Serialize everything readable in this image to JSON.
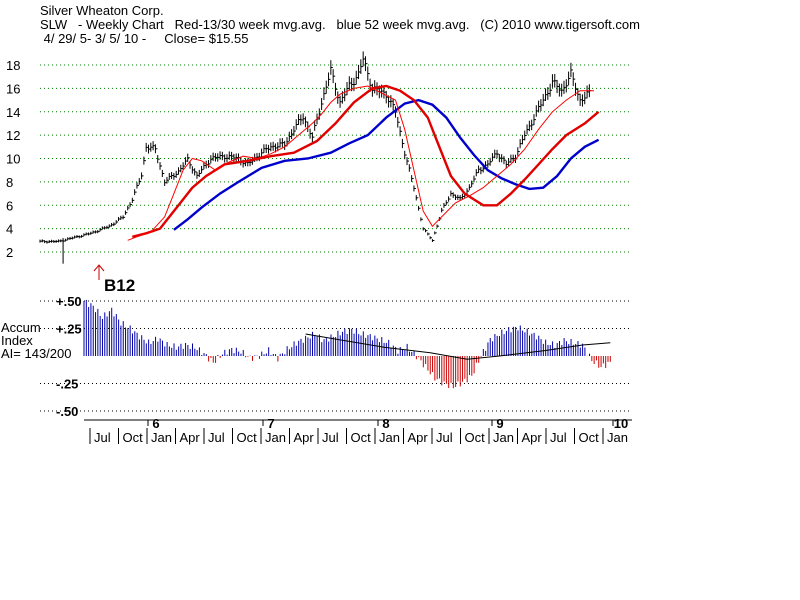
{
  "header": {
    "company": "Silver Wheaton Corp.",
    "line2": "SLW   - Weekly Chart   Red-13/30 week mvg.avg.   blue 52 week mvg.avg.   (C) 2010 www.tigersoft.com",
    "line3": " 4/ 29/ 5- 3/ 5/ 10 -     Close= $15.55"
  },
  "signal": {
    "label": "B12"
  },
  "accum_panel": {
    "title_line1": "Accum",
    "title_line2": "Index",
    "ai_text": "AI= 143/200",
    "y_ticks": [
      "+.50",
      "+.25",
      "-.25",
      "-.50"
    ]
  },
  "colors": {
    "price_bars": "#000000",
    "ma13": "#ff0000",
    "ma30": "#e00000",
    "ma52": "#0000cc",
    "accum_pos": "#0000aa",
    "accum_neg": "#cc0000",
    "grid": "#008000"
  },
  "chart_data": {
    "type": "line",
    "title": "SLW - Weekly Chart",
    "x_month_labels": [
      "Jul",
      "Oct",
      "Jan",
      "Apr",
      "Jul",
      "Oct",
      "Jan",
      "Apr",
      "Jul",
      "Oct",
      "Jan",
      "Apr",
      "Jul",
      "Oct",
      "Jan",
      "Apr",
      "Jul",
      "Oct",
      "Jan"
    ],
    "x_year_labels": [
      "6",
      "7",
      "8",
      "9",
      "10"
    ],
    "y_ticks": [
      2,
      4,
      6,
      8,
      10,
      12,
      14,
      16,
      18
    ],
    "ylim": [
      2,
      18
    ],
    "x_range_weeks": [
      0,
      253
    ],
    "price_points": [
      [
        0,
        2.9
      ],
      [
        8,
        2.9
      ],
      [
        14,
        3.2
      ],
      [
        22,
        3.6
      ],
      [
        30,
        4.2
      ],
      [
        36,
        5.0
      ],
      [
        40,
        6.5
      ],
      [
        44,
        8.6
      ],
      [
        46,
        11.0
      ],
      [
        50,
        10.8
      ],
      [
        54,
        8.0
      ],
      [
        60,
        8.9
      ],
      [
        64,
        9.9
      ],
      [
        68,
        8.5
      ],
      [
        74,
        10.0
      ],
      [
        80,
        10.2
      ],
      [
        86,
        10.0
      ],
      [
        90,
        9.5
      ],
      [
        96,
        10.5
      ],
      [
        100,
        11.0
      ],
      [
        106,
        11.2
      ],
      [
        110,
        12.5
      ],
      [
        114,
        13.6
      ],
      [
        118,
        11.8
      ],
      [
        122,
        14.8
      ],
      [
        126,
        17.5
      ],
      [
        130,
        14.8
      ],
      [
        134,
        16.2
      ],
      [
        138,
        17.2
      ],
      [
        140,
        18.5
      ],
      [
        144,
        16.0
      ],
      [
        150,
        15.5
      ],
      [
        154,
        14.0
      ],
      [
        158,
        10.5
      ],
      [
        162,
        7.5
      ],
      [
        166,
        4.0
      ],
      [
        170,
        3.0
      ],
      [
        174,
        5.5
      ],
      [
        178,
        7.0
      ],
      [
        182,
        6.5
      ],
      [
        186,
        7.5
      ],
      [
        190,
        9.0
      ],
      [
        194,
        9.5
      ],
      [
        198,
        10.5
      ],
      [
        202,
        9.5
      ],
      [
        206,
        10.2
      ],
      [
        210,
        12.0
      ],
      [
        214,
        13.5
      ],
      [
        218,
        15.0
      ],
      [
        222,
        16.5
      ],
      [
        226,
        15.8
      ],
      [
        230,
        17.2
      ],
      [
        234,
        15.0
      ],
      [
        238,
        15.55
      ]
    ],
    "series": [
      {
        "name": "Red-13/30 week mvg.avg.",
        "points": [
          [
            40,
            3.3
          ],
          [
            46,
            3.6
          ],
          [
            52,
            4.0
          ],
          [
            56,
            5.0
          ],
          [
            60,
            6.0
          ],
          [
            66,
            7.5
          ],
          [
            72,
            8.5
          ],
          [
            80,
            9.5
          ],
          [
            90,
            9.8
          ],
          [
            100,
            10.2
          ],
          [
            110,
            10.5
          ],
          [
            120,
            11.5
          ],
          [
            128,
            13.0
          ],
          [
            136,
            14.8
          ],
          [
            144,
            16.0
          ],
          [
            150,
            16.2
          ],
          [
            156,
            15.8
          ],
          [
            162,
            15.0
          ],
          [
            168,
            13.5
          ],
          [
            172,
            11.5
          ],
          [
            178,
            8.5
          ],
          [
            184,
            7.0
          ],
          [
            192,
            6.0
          ],
          [
            198,
            6.0
          ],
          [
            204,
            7.0
          ],
          [
            210,
            8.2
          ],
          [
            216,
            9.5
          ],
          [
            222,
            10.8
          ],
          [
            228,
            12.0
          ],
          [
            236,
            13.0
          ],
          [
            242,
            14.0
          ]
        ]
      },
      {
        "name": "13 week mvg.avg.",
        "points": [
          [
            38,
            3.0
          ],
          [
            42,
            3.3
          ],
          [
            48,
            3.7
          ],
          [
            54,
            5.0
          ],
          [
            58,
            7.0
          ],
          [
            62,
            9.0
          ],
          [
            66,
            10.0
          ],
          [
            70,
            9.8
          ],
          [
            76,
            9.0
          ],
          [
            82,
            9.7
          ],
          [
            88,
            10.2
          ],
          [
            94,
            10.0
          ],
          [
            100,
            10.4
          ],
          [
            106,
            11.0
          ],
          [
            112,
            12.0
          ],
          [
            118,
            13.0
          ],
          [
            122,
            13.8
          ],
          [
            126,
            14.8
          ],
          [
            130,
            15.5
          ],
          [
            136,
            16.0
          ],
          [
            142,
            16.2
          ],
          [
            148,
            15.6
          ],
          [
            154,
            15.0
          ],
          [
            158,
            12.5
          ],
          [
            162,
            9.0
          ],
          [
            166,
            5.5
          ],
          [
            170,
            4.2
          ],
          [
            174,
            5.0
          ],
          [
            180,
            6.2
          ],
          [
            186,
            6.8
          ],
          [
            192,
            7.5
          ],
          [
            198,
            8.5
          ],
          [
            204,
            9.5
          ],
          [
            210,
            10.8
          ],
          [
            216,
            12.5
          ],
          [
            222,
            14.0
          ],
          [
            228,
            15.0
          ],
          [
            234,
            15.8
          ],
          [
            240,
            15.8
          ]
        ]
      },
      {
        "name": "blue 52 week mvg.avg.",
        "points": [
          [
            58,
            3.9
          ],
          [
            64,
            4.8
          ],
          [
            70,
            5.8
          ],
          [
            78,
            7.0
          ],
          [
            86,
            8.0
          ],
          [
            96,
            9.2
          ],
          [
            106,
            9.8
          ],
          [
            116,
            10.0
          ],
          [
            126,
            10.5
          ],
          [
            134,
            11.3
          ],
          [
            142,
            12.0
          ],
          [
            150,
            13.5
          ],
          [
            158,
            14.7
          ],
          [
            164,
            15.0
          ],
          [
            170,
            14.6
          ],
          [
            176,
            13.5
          ],
          [
            182,
            11.8
          ],
          [
            188,
            10.3
          ],
          [
            194,
            9.0
          ],
          [
            200,
            8.3
          ],
          [
            206,
            7.8
          ],
          [
            212,
            7.4
          ],
          [
            218,
            7.5
          ],
          [
            224,
            8.5
          ],
          [
            230,
            10.0
          ],
          [
            236,
            11.0
          ],
          [
            242,
            11.6
          ]
        ]
      }
    ],
    "accum_index": {
      "ylim": [
        -0.5,
        0.5
      ],
      "y_ticks": [
        0.5,
        0.25,
        -0.25,
        -0.5
      ],
      "values": [
        [
          0,
          0.5
        ],
        [
          4,
          0.45
        ],
        [
          8,
          0.35
        ],
        [
          12,
          0.42
        ],
        [
          16,
          0.3
        ],
        [
          20,
          0.25
        ],
        [
          24,
          0.18
        ],
        [
          28,
          0.12
        ],
        [
          32,
          0.16
        ],
        [
          36,
          0.1
        ],
        [
          40,
          0.08
        ],
        [
          44,
          0.1
        ],
        [
          48,
          0.08
        ],
        [
          52,
          0.02
        ],
        [
          56,
          -0.06
        ],
        [
          60,
          0.02
        ],
        [
          64,
          0.06
        ],
        [
          68,
          0.04
        ],
        [
          72,
          -0.02
        ],
        [
          76,
          0.0
        ],
        [
          80,
          0.05
        ],
        [
          84,
          -0.02
        ],
        [
          88,
          0.06
        ],
        [
          92,
          0.12
        ],
        [
          96,
          0.16
        ],
        [
          100,
          0.2
        ],
        [
          104,
          0.14
        ],
        [
          108,
          0.18
        ],
        [
          112,
          0.22
        ],
        [
          116,
          0.24
        ],
        [
          120,
          0.2
        ],
        [
          124,
          0.18
        ],
        [
          128,
          0.15
        ],
        [
          132,
          0.12
        ],
        [
          136,
          0.05
        ],
        [
          140,
          0.08
        ],
        [
          144,
          0.0
        ],
        [
          148,
          -0.1
        ],
        [
          152,
          -0.2
        ],
        [
          156,
          -0.25
        ],
        [
          160,
          -0.28
        ],
        [
          164,
          -0.24
        ],
        [
          168,
          -0.18
        ],
        [
          172,
          0.0
        ],
        [
          176,
          0.15
        ],
        [
          180,
          0.2
        ],
        [
          184,
          0.24
        ],
        [
          188,
          0.26
        ],
        [
          192,
          0.22
        ],
        [
          196,
          0.18
        ],
        [
          200,
          0.12
        ],
        [
          204,
          0.1
        ],
        [
          208,
          0.14
        ],
        [
          212,
          0.12
        ],
        [
          216,
          0.1
        ],
        [
          220,
          -0.04
        ],
        [
          224,
          -0.1
        ],
        [
          228,
          -0.06
        ]
      ],
      "baseline_ma": [
        [
          96,
          0.2
        ],
        [
          110,
          0.15
        ],
        [
          130,
          0.08
        ],
        [
          150,
          0.03
        ],
        [
          166,
          -0.03
        ],
        [
          180,
          0.0
        ],
        [
          200,
          0.05
        ],
        [
          216,
          0.1
        ],
        [
          228,
          0.12
        ]
      ]
    }
  }
}
